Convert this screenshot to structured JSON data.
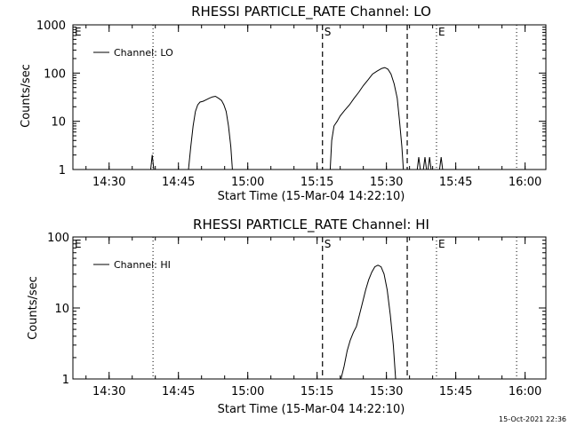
{
  "footer": {
    "timestamp": "15-Oct-2021 22:36"
  },
  "chart_data": [
    {
      "type": "line",
      "title": "RHESSI PARTICLE_RATE Channel: LO",
      "xlabel": "Start Time (15-Mar-04 14:22:10)",
      "ylabel": "Counts/sec",
      "yscale": "log",
      "xlim": [
        "14:22:10",
        "16:04:30"
      ],
      "ylim": [
        1,
        1000
      ],
      "x_ticks": [
        "14:30",
        "14:45",
        "15:00",
        "15:15",
        "15:30",
        "15:45",
        "16:00"
      ],
      "y_ticks": [
        "1",
        "10",
        "100",
        "1000"
      ],
      "legend": {
        "position": "top-left",
        "entries": [
          "Channel: LO"
        ]
      },
      "markers": [
        {
          "label": "E",
          "time": "14:22:10",
          "style": "dotted"
        },
        {
          "label": "",
          "time": "14:39:30",
          "style": "dotted"
        },
        {
          "label": "S",
          "time": "15:16:10",
          "style": "dashed"
        },
        {
          "label": "",
          "time": "15:34:30",
          "style": "dashed"
        },
        {
          "label": "E",
          "time": "15:40:50",
          "style": "dotted"
        },
        {
          "label": "",
          "time": "15:58:10",
          "style": "dotted"
        }
      ],
      "series": [
        {
          "name": "Channel: LO",
          "points": [
            [
              "14:39:00",
              1
            ],
            [
              "14:39:20",
              2
            ],
            [
              "14:39:40",
              1
            ],
            [
              "14:47:10",
              1
            ],
            [
              "14:47:40",
              3
            ],
            [
              "14:48:10",
              8
            ],
            [
              "14:48:40",
              16
            ],
            [
              "14:49:10",
              22
            ],
            [
              "14:49:40",
              25
            ],
            [
              "14:50:20",
              26
            ],
            [
              "14:51:00",
              28
            ],
            [
              "14:51:40",
              30
            ],
            [
              "14:52:20",
              32
            ],
            [
              "14:53:00",
              33
            ],
            [
              "14:53:40",
              30
            ],
            [
              "14:54:20",
              27
            ],
            [
              "14:54:50",
              22
            ],
            [
              "14:55:20",
              16
            ],
            [
              "14:55:50",
              8
            ],
            [
              "14:56:20",
              3
            ],
            [
              "14:56:40",
              1
            ],
            [
              "15:17:50",
              1
            ],
            [
              "15:18:10",
              4
            ],
            [
              "15:18:40",
              8
            ],
            [
              "15:19:20",
              10
            ],
            [
              "15:20:00",
              13
            ],
            [
              "15:21:00",
              17
            ],
            [
              "15:22:00",
              22
            ],
            [
              "15:23:00",
              30
            ],
            [
              "15:24:00",
              40
            ],
            [
              "15:25:00",
              55
            ],
            [
              "15:26:00",
              72
            ],
            [
              "15:27:00",
              95
            ],
            [
              "15:28:00",
              110
            ],
            [
              "15:29:00",
              125
            ],
            [
              "15:29:40",
              130
            ],
            [
              "15:30:20",
              120
            ],
            [
              "15:31:00",
              95
            ],
            [
              "15:31:40",
              60
            ],
            [
              "15:32:20",
              30
            ],
            [
              "15:32:50",
              10
            ],
            [
              "15:33:20",
              3
            ],
            [
              "15:33:40",
              1
            ],
            [
              "15:36:40",
              1
            ],
            [
              "15:37:00",
              1.8
            ],
            [
              "15:37:20",
              1
            ],
            [
              "15:38:00",
              1
            ],
            [
              "15:38:20",
              1.8
            ],
            [
              "15:38:40",
              1
            ],
            [
              "15:39:00",
              1
            ],
            [
              "15:39:20",
              1.8
            ],
            [
              "15:39:40",
              1
            ],
            [
              "15:41:30",
              1
            ],
            [
              "15:41:50",
              1.8
            ],
            [
              "15:42:10",
              1
            ]
          ]
        }
      ]
    },
    {
      "type": "line",
      "title": "RHESSI PARTICLE_RATE Channel: HI",
      "xlabel": "Start Time (15-Mar-04 14:22:10)",
      "ylabel": "Counts/sec",
      "yscale": "log",
      "xlim": [
        "14:22:10",
        "16:04:30"
      ],
      "ylim": [
        1,
        100
      ],
      "x_ticks": [
        "14:30",
        "14:45",
        "15:00",
        "15:15",
        "15:30",
        "15:45",
        "16:00"
      ],
      "y_ticks": [
        "1",
        "10",
        "100"
      ],
      "legend": {
        "position": "top-left",
        "entries": [
          "Channel: HI"
        ]
      },
      "markers": [
        {
          "label": "E",
          "time": "14:22:10",
          "style": "dotted"
        },
        {
          "label": "",
          "time": "14:39:30",
          "style": "dotted"
        },
        {
          "label": "S",
          "time": "15:16:10",
          "style": "dashed"
        },
        {
          "label": "",
          "time": "15:34:30",
          "style": "dashed"
        },
        {
          "label": "E",
          "time": "15:40:50",
          "style": "dotted"
        },
        {
          "label": "",
          "time": "15:58:10",
          "style": "dotted"
        }
      ],
      "series": [
        {
          "name": "Channel: HI",
          "points": [
            [
              "15:20:10",
              1
            ],
            [
              "15:20:50",
              1.5
            ],
            [
              "15:21:30",
              2.5
            ],
            [
              "15:22:10",
              3.5
            ],
            [
              "15:22:50",
              4.5
            ],
            [
              "15:23:30",
              5.5
            ],
            [
              "15:24:10",
              8
            ],
            [
              "15:24:50",
              12
            ],
            [
              "15:25:30",
              18
            ],
            [
              "15:26:10",
              25
            ],
            [
              "15:26:50",
              32
            ],
            [
              "15:27:30",
              38
            ],
            [
              "15:28:10",
              40
            ],
            [
              "15:28:50",
              38
            ],
            [
              "15:29:30",
              30
            ],
            [
              "15:30:10",
              18
            ],
            [
              "15:30:50",
              8
            ],
            [
              "15:31:30",
              3
            ],
            [
              "15:32:00",
              1
            ]
          ]
        }
      ]
    }
  ]
}
